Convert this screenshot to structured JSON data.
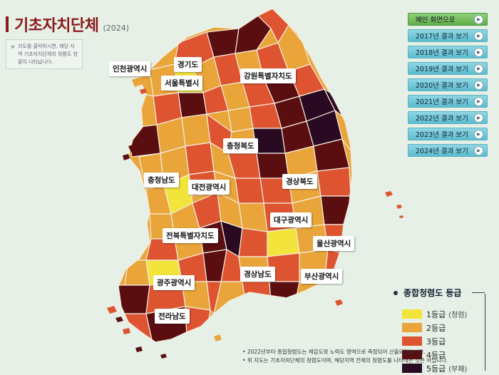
{
  "header": {
    "title": "기초자치단체",
    "year": "(2024)"
  },
  "note": {
    "text": "지도를 클릭하시면, 해당 지역 기초자치단체의 청렴도 현황이 나타납니다."
  },
  "menu": {
    "home": "메인 화면으로",
    "items": [
      "2017년 결과 보기",
      "2018년 결과 보기",
      "2019년 결과 보기",
      "2020년 결과 보기",
      "2021년 결과 보기",
      "2022년 결과 보기",
      "2023년 결과 보기",
      "2024년 결과 보기"
    ]
  },
  "map": {
    "labels": {
      "incheon": "인천광역시",
      "gyeonggi": "경기도",
      "seoul": "서울특별시",
      "gangwon": "강원특별자치도",
      "chungbuk": "충청북도",
      "chungnam": "충청남도",
      "daejeon": "대전광역시",
      "gyeongbuk": "경상북도",
      "daegu": "대구광역시",
      "jeonbuk": "전북특별자치도",
      "ulsan": "울산광역시",
      "gyeongnam": "경상남도",
      "gwangju": "광주광역시",
      "busan": "부산광역시",
      "jeonnam": "전라남도"
    }
  },
  "legend": {
    "title": "종합청렴도 등급",
    "items": [
      {
        "label": "1등급",
        "sub": "(청렴)",
        "color": "#f2e43a"
      },
      {
        "label": "2등급",
        "sub": "",
        "color": "#e9a53a"
      },
      {
        "label": "3등급",
        "sub": "",
        "color": "#de5430"
      },
      {
        "label": "4등급",
        "sub": "",
        "color": "#5a0e10"
      },
      {
        "label": "5등급",
        "sub": "(부패)",
        "color": "#2a0a22"
      }
    ]
  },
  "footer": {
    "line1": "2022년부터 종합청렴도는 체감도와 노력도 영역으로 측정되어 산출되었습니다.",
    "line2": "위 지도는 기초자치단체의 청렴도이며, 해당지역 전체의 청렴도를 나타내는 것은 아닙니다."
  }
}
